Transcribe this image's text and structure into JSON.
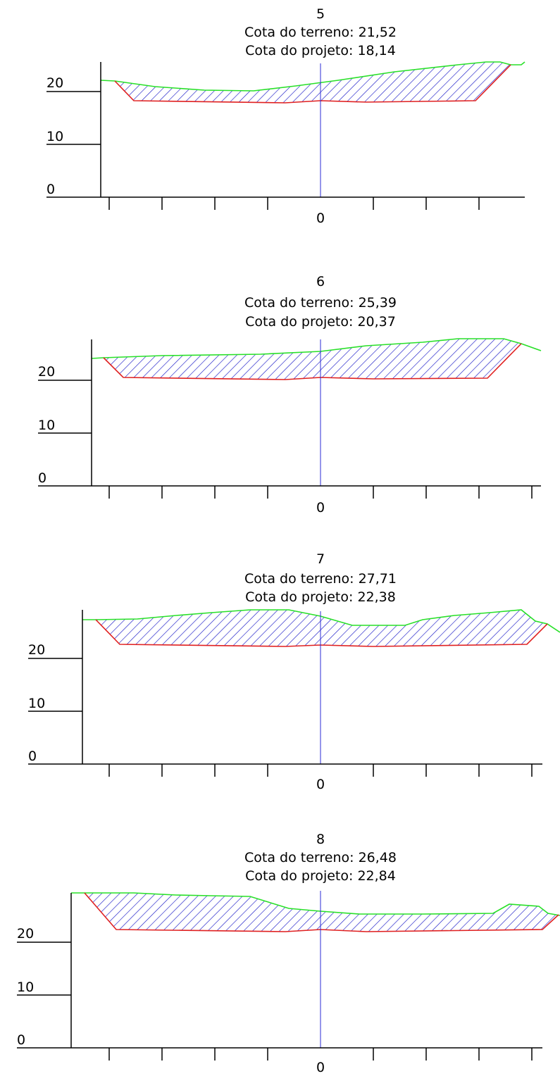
{
  "colors": {
    "terrain": "#28e028",
    "project": "#e02020",
    "hatch": "#1c1cc8",
    "centerline": "#2b2bd6",
    "ink": "#000000"
  },
  "sections": [
    {
      "id": "5",
      "station": "5",
      "terrain_label": "Cota do terreno: 21,52",
      "project_label": "Cota do projeto: 18,14",
      "y_labels": [
        "20",
        "10",
        "0"
      ],
      "center_label": "0"
    },
    {
      "id": "6",
      "station": "6",
      "terrain_label": "Cota do terreno: 25,39",
      "project_label": "Cota do projeto: 20,37",
      "y_labels": [
        "20",
        "10",
        "0"
      ],
      "center_label": "0"
    },
    {
      "id": "7",
      "station": "7",
      "terrain_label": "Cota do terreno: 27,71",
      "project_label": "Cota do projeto: 22,38",
      "y_labels": [
        "20",
        "10",
        "0"
      ],
      "center_label": "0"
    },
    {
      "id": "8",
      "station": "8",
      "terrain_label": "Cota do terreno: 26,48",
      "project_label": "Cota do projeto: 22,84",
      "y_labels": [
        "20",
        "10",
        "0"
      ],
      "center_label": "0"
    }
  ]
}
